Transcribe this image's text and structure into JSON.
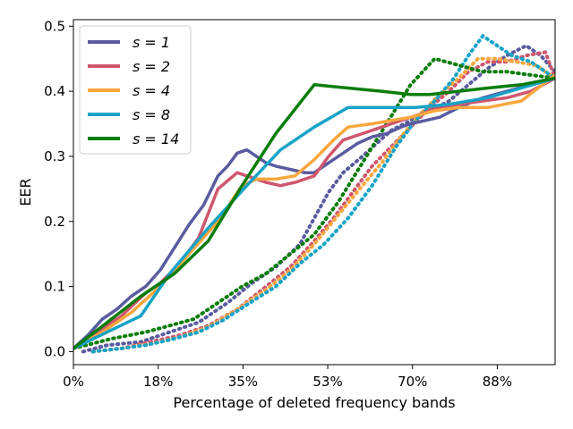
{
  "chart_data": {
    "type": "line",
    "xlabel": "Percentage of deleted frequency bands",
    "ylabel": "EER",
    "xlim": [
      0,
      100
    ],
    "ylim": [
      -0.02,
      0.51
    ],
    "x_ticks": [
      0,
      17.6,
      35.2,
      52.8,
      70.4,
      88
    ],
    "x_tick_labels": [
      "0%",
      "18%",
      "35%",
      "53%",
      "70%",
      "88%"
    ],
    "y_ticks": [
      0.0,
      0.1,
      0.2,
      0.3,
      0.4,
      0.5
    ],
    "y_tick_labels": [
      "0.0",
      "0.1",
      "0.2",
      "0.3",
      "0.4",
      "0.5"
    ],
    "legend_position": "top-left",
    "series": [
      {
        "name": "s = 1",
        "label": "s = 1",
        "color": "#5a5b9f",
        "solid": {
          "x": [
            0,
            3,
            6,
            9,
            12,
            15,
            18,
            21,
            24,
            27,
            30,
            32,
            34,
            36,
            38,
            40,
            42,
            45,
            48,
            50,
            53,
            56,
            59,
            62,
            65,
            68,
            70,
            73,
            76,
            80,
            85,
            90,
            95,
            100
          ],
          "y": [
            0.005,
            0.025,
            0.05,
            0.065,
            0.085,
            0.1,
            0.125,
            0.16,
            0.195,
            0.225,
            0.27,
            0.285,
            0.305,
            0.31,
            0.3,
            0.29,
            0.285,
            0.28,
            0.275,
            0.275,
            0.29,
            0.305,
            0.32,
            0.33,
            0.335,
            0.345,
            0.35,
            0.355,
            0.36,
            0.375,
            0.39,
            0.4,
            0.41,
            0.42
          ]
        },
        "dotted": {
          "x": [
            2,
            7,
            14,
            20,
            26,
            32,
            37,
            42,
            47,
            50,
            53,
            56,
            60,
            63,
            66,
            70,
            74,
            78,
            82,
            86,
            90,
            94,
            97,
            100
          ],
          "y": [
            0.0,
            0.01,
            0.015,
            0.03,
            0.045,
            0.075,
            0.105,
            0.13,
            0.165,
            0.205,
            0.245,
            0.275,
            0.3,
            0.32,
            0.34,
            0.355,
            0.37,
            0.385,
            0.41,
            0.435,
            0.455,
            0.47,
            0.455,
            0.43
          ]
        }
      },
      {
        "name": "s = 2",
        "label": "s = 2",
        "color": "#cf566d",
        "solid": {
          "x": [
            0,
            5,
            10,
            15,
            18,
            22,
            26,
            30,
            34,
            36,
            38,
            40,
            43,
            46,
            50,
            53,
            56,
            60,
            64,
            68,
            72,
            76,
            80,
            85,
            90,
            95,
            100
          ],
          "y": [
            0.005,
            0.03,
            0.055,
            0.09,
            0.105,
            0.135,
            0.175,
            0.25,
            0.275,
            0.27,
            0.265,
            0.26,
            0.255,
            0.26,
            0.27,
            0.3,
            0.325,
            0.335,
            0.345,
            0.355,
            0.365,
            0.375,
            0.38,
            0.385,
            0.39,
            0.4,
            0.42
          ]
        },
        "dotted": {
          "x": [
            4,
            10,
            16,
            22,
            28,
            34,
            40,
            45,
            50,
            54,
            58,
            62,
            66,
            70,
            74,
            78,
            82,
            86,
            90,
            94,
            98,
            100
          ],
          "y": [
            0.0,
            0.005,
            0.015,
            0.025,
            0.04,
            0.065,
            0.1,
            0.13,
            0.17,
            0.205,
            0.245,
            0.285,
            0.315,
            0.345,
            0.375,
            0.4,
            0.43,
            0.445,
            0.445,
            0.455,
            0.46,
            0.42
          ]
        }
      },
      {
        "name": "s = 4",
        "label": "s = 4",
        "color": "#f9a73e",
        "solid": {
          "x": [
            0,
            6,
            12,
            18,
            24,
            30,
            35,
            38,
            42,
            46,
            50,
            54,
            57,
            62,
            66,
            70,
            75,
            80,
            86,
            93,
            100
          ],
          "y": [
            0.005,
            0.03,
            0.06,
            0.1,
            0.15,
            0.2,
            0.255,
            0.265,
            0.265,
            0.27,
            0.295,
            0.325,
            0.345,
            0.35,
            0.355,
            0.36,
            0.37,
            0.375,
            0.375,
            0.385,
            0.425
          ]
        },
        "dotted": {
          "x": [
            4,
            10,
            16,
            22,
            28,
            34,
            40,
            45,
            50,
            55,
            60,
            64,
            68,
            72,
            76,
            80,
            84,
            88,
            92,
            96,
            100
          ],
          "y": [
            0.0,
            0.005,
            0.012,
            0.022,
            0.038,
            0.065,
            0.095,
            0.125,
            0.165,
            0.21,
            0.255,
            0.29,
            0.33,
            0.365,
            0.395,
            0.42,
            0.45,
            0.45,
            0.445,
            0.44,
            0.42
          ]
        }
      },
      {
        "name": "s = 8",
        "label": "s = 8",
        "color": "#18a3c7",
        "solid": {
          "x": [
            0,
            7,
            14,
            20,
            28,
            36,
            43,
            50,
            57,
            64,
            71,
            78,
            86,
            93,
            100
          ],
          "y": [
            0.005,
            0.03,
            0.055,
            0.12,
            0.19,
            0.255,
            0.31,
            0.345,
            0.375,
            0.375,
            0.375,
            0.38,
            0.39,
            0.405,
            0.42
          ]
        },
        "dotted": {
          "x": [
            4,
            10,
            15,
            20,
            26,
            31,
            36,
            42,
            47,
            52,
            57,
            62,
            67,
            71,
            75,
            79,
            82,
            85,
            88,
            91,
            95,
            100
          ],
          "y": [
            0.0,
            0.005,
            0.01,
            0.018,
            0.03,
            0.048,
            0.072,
            0.1,
            0.135,
            0.165,
            0.205,
            0.255,
            0.315,
            0.355,
            0.385,
            0.42,
            0.455,
            0.485,
            0.47,
            0.455,
            0.445,
            0.42
          ]
        }
      },
      {
        "name": "s = 14",
        "label": "s = 14",
        "color": "#0a7d0a",
        "solid": {
          "x": [
            0,
            7,
            14,
            21,
            28,
            35,
            42,
            50,
            57,
            64,
            70,
            74,
            80,
            86,
            93,
            100
          ],
          "y": [
            0.005,
            0.045,
            0.085,
            0.12,
            0.17,
            0.255,
            0.335,
            0.41,
            0.405,
            0.4,
            0.395,
            0.395,
            0.4,
            0.405,
            0.41,
            0.42
          ]
        },
        "dotted": {
          "x": [
            0,
            8,
            15,
            20,
            25,
            30,
            35,
            40,
            45,
            50,
            55,
            60,
            65,
            70,
            75,
            80,
            85,
            90,
            95,
            100
          ],
          "y": [
            0.005,
            0.02,
            0.03,
            0.04,
            0.05,
            0.075,
            0.1,
            0.12,
            0.15,
            0.18,
            0.23,
            0.29,
            0.35,
            0.41,
            0.45,
            0.44,
            0.43,
            0.43,
            0.425,
            0.42
          ]
        }
      }
    ]
  }
}
